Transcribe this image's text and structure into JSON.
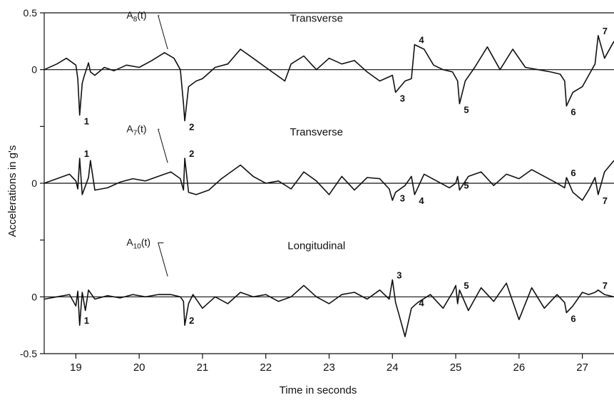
{
  "chart_data": {
    "type": "line",
    "xlabel": "Time in seconds",
    "ylabel": "Accelerations in g's",
    "xlim": [
      18.5,
      27.5
    ],
    "x_ticks": [
      19,
      20,
      21,
      22,
      23,
      24,
      25,
      26,
      27
    ],
    "x_tick_labels": [
      "19",
      "20",
      "21",
      "22",
      "23",
      "24",
      "25",
      "26",
      "27"
    ],
    "y_tick_labels": [
      "0.5",
      "0",
      "0",
      "0",
      "-0.5"
    ],
    "grid": false,
    "legend": "none",
    "offset_unit_g": 0.5,
    "series": [
      {
        "label": "A",
        "label_sub": "8",
        "label_suffix": "(t)",
        "title": "Transverse",
        "baseline_offset": 1.0,
        "x": [
          18.5,
          18.7,
          18.85,
          19.0,
          19.03,
          19.06,
          19.1,
          19.13,
          19.2,
          19.23,
          19.3,
          19.45,
          19.6,
          19.8,
          20.0,
          20.2,
          20.4,
          20.55,
          20.65,
          20.7,
          20.72,
          20.78,
          20.9,
          21.0,
          21.2,
          21.4,
          21.6,
          21.8,
          22.0,
          22.2,
          22.3,
          22.4,
          22.6,
          22.8,
          23.0,
          23.2,
          23.4,
          23.6,
          23.8,
          24.0,
          24.05,
          24.2,
          24.3,
          24.35,
          24.5,
          24.65,
          24.8,
          24.95,
          25.03,
          25.06,
          25.15,
          25.3,
          25.5,
          25.7,
          25.9,
          26.1,
          26.3,
          26.5,
          26.65,
          26.72,
          26.75,
          26.85,
          27.0,
          27.1,
          27.2,
          27.25,
          27.35,
          27.5
        ],
        "y": [
          0.0,
          0.05,
          0.1,
          0.04,
          -0.08,
          -0.4,
          -0.12,
          -0.06,
          0.06,
          -0.02,
          -0.05,
          0.02,
          -0.01,
          0.04,
          0.02,
          0.08,
          0.15,
          0.1,
          0.0,
          -0.3,
          -0.45,
          -0.15,
          -0.1,
          -0.08,
          0.02,
          0.05,
          0.18,
          0.1,
          0.02,
          -0.06,
          -0.1,
          0.05,
          0.12,
          0.0,
          0.1,
          0.05,
          0.08,
          -0.02,
          -0.1,
          -0.05,
          -0.2,
          -0.1,
          -0.08,
          0.22,
          0.18,
          0.04,
          0.0,
          -0.02,
          -0.1,
          -0.3,
          -0.1,
          0.02,
          0.2,
          0.0,
          0.18,
          0.02,
          0.0,
          -0.02,
          -0.04,
          -0.1,
          -0.32,
          -0.2,
          -0.15,
          -0.05,
          0.05,
          0.3,
          0.1,
          0.25
        ],
        "event_labels": [
          {
            "id": "1",
            "x": 19.06,
            "side": "below"
          },
          {
            "id": "2",
            "x": 20.72,
            "side": "below"
          },
          {
            "id": "3",
            "x": 24.05,
            "side": "below"
          },
          {
            "id": "4",
            "x": 24.35,
            "side": "above"
          },
          {
            "id": "5",
            "x": 25.06,
            "side": "below"
          },
          {
            "id": "6",
            "x": 26.75,
            "side": "below"
          },
          {
            "id": "7",
            "x": 27.25,
            "side": "above"
          }
        ]
      },
      {
        "label": "A",
        "label_sub": "7",
        "label_suffix": "(t)",
        "title": "Transverse",
        "baseline_offset": 0.0,
        "x": [
          18.5,
          18.7,
          18.9,
          19.0,
          19.03,
          19.06,
          19.1,
          19.2,
          19.23,
          19.3,
          19.5,
          19.7,
          19.9,
          20.1,
          20.3,
          20.5,
          20.65,
          20.7,
          20.72,
          20.78,
          20.9,
          21.1,
          21.3,
          21.6,
          21.8,
          22.0,
          22.2,
          22.4,
          22.6,
          22.8,
          23.0,
          23.2,
          23.4,
          23.6,
          23.8,
          23.95,
          24.0,
          24.05,
          24.2,
          24.3,
          24.35,
          24.5,
          24.7,
          24.9,
          25.0,
          25.03,
          25.06,
          25.2,
          25.4,
          25.6,
          25.8,
          26.0,
          26.2,
          26.4,
          26.6,
          26.72,
          26.75,
          26.85,
          27.0,
          27.1,
          27.2,
          27.25,
          27.35,
          27.5
        ],
        "y": [
          0.0,
          0.04,
          0.08,
          0.02,
          -0.05,
          0.22,
          -0.1,
          0.05,
          0.2,
          -0.06,
          -0.04,
          0.01,
          0.04,
          0.02,
          0.06,
          0.1,
          0.04,
          -0.06,
          0.22,
          -0.08,
          -0.1,
          -0.06,
          0.04,
          0.16,
          0.06,
          0.0,
          0.02,
          -0.05,
          0.1,
          0.02,
          -0.1,
          0.06,
          -0.06,
          0.05,
          0.04,
          -0.05,
          -0.15,
          -0.08,
          -0.02,
          0.06,
          -0.1,
          0.08,
          0.02,
          -0.04,
          0.0,
          0.06,
          -0.06,
          0.06,
          0.1,
          -0.02,
          0.08,
          0.04,
          0.12,
          0.06,
          0.0,
          -0.04,
          0.05,
          -0.08,
          -0.15,
          -0.06,
          0.05,
          -0.1,
          0.1,
          0.2
        ],
        "event_labels": [
          {
            "id": "1",
            "x": 19.06,
            "side": "above"
          },
          {
            "id": "2",
            "x": 20.72,
            "side": "above"
          },
          {
            "id": "3",
            "x": 24.05,
            "side": "below"
          },
          {
            "id": "4",
            "x": 24.35,
            "side": "below"
          },
          {
            "id": "5",
            "x": 25.06,
            "side": "above"
          },
          {
            "id": "6",
            "x": 26.75,
            "side": "above"
          },
          {
            "id": "7",
            "x": 27.25,
            "side": "below"
          }
        ]
      },
      {
        "label": "A",
        "label_sub": "10",
        "label_suffix": "(t)",
        "title": "Longitudinal",
        "baseline_offset": -1.0,
        "x": [
          18.5,
          18.7,
          18.9,
          19.0,
          19.03,
          19.06,
          19.1,
          19.15,
          19.2,
          19.3,
          19.5,
          19.7,
          19.9,
          20.1,
          20.3,
          20.5,
          20.65,
          20.7,
          20.72,
          20.78,
          20.85,
          21.0,
          21.2,
          21.4,
          21.6,
          21.8,
          22.0,
          22.2,
          22.4,
          22.6,
          22.8,
          23.0,
          23.2,
          23.4,
          23.6,
          23.8,
          23.95,
          24.0,
          24.05,
          24.1,
          24.15,
          24.2,
          24.3,
          24.4,
          24.6,
          24.8,
          24.95,
          25.0,
          25.03,
          25.06,
          25.2,
          25.4,
          25.6,
          25.8,
          26.0,
          26.2,
          26.4,
          26.6,
          26.72,
          26.75,
          26.85,
          27.0,
          27.1,
          27.2,
          27.25,
          27.35,
          27.5
        ],
        "y": [
          -0.02,
          0.0,
          0.02,
          -0.08,
          0.05,
          -0.25,
          0.04,
          -0.12,
          0.06,
          -0.02,
          0.01,
          -0.01,
          0.02,
          0.0,
          0.02,
          0.02,
          0.0,
          -0.04,
          -0.25,
          -0.06,
          0.02,
          -0.1,
          0.0,
          -0.06,
          0.04,
          0.0,
          0.02,
          -0.04,
          0.0,
          0.1,
          0.0,
          -0.06,
          0.02,
          0.04,
          -0.02,
          0.06,
          -0.02,
          0.15,
          -0.05,
          -0.15,
          -0.25,
          -0.35,
          -0.1,
          -0.05,
          0.02,
          -0.1,
          0.04,
          0.1,
          -0.06,
          0.06,
          -0.12,
          0.08,
          -0.04,
          0.12,
          -0.2,
          0.08,
          -0.1,
          0.02,
          -0.05,
          -0.14,
          -0.08,
          0.04,
          0.02,
          0.04,
          0.06,
          0.02,
          0.0
        ],
        "event_labels": [
          {
            "id": "1",
            "x": 19.06,
            "side": "above"
          },
          {
            "id": "2",
            "x": 20.72,
            "side": "above"
          },
          {
            "id": "3",
            "x": 24.0,
            "side": "above"
          },
          {
            "id": "4",
            "x": 24.35,
            "side": "below"
          },
          {
            "id": "5",
            "x": 25.06,
            "side": "above"
          },
          {
            "id": "6",
            "x": 26.75,
            "side": "below"
          },
          {
            "id": "7",
            "x": 27.25,
            "side": "above"
          }
        ]
      }
    ]
  }
}
